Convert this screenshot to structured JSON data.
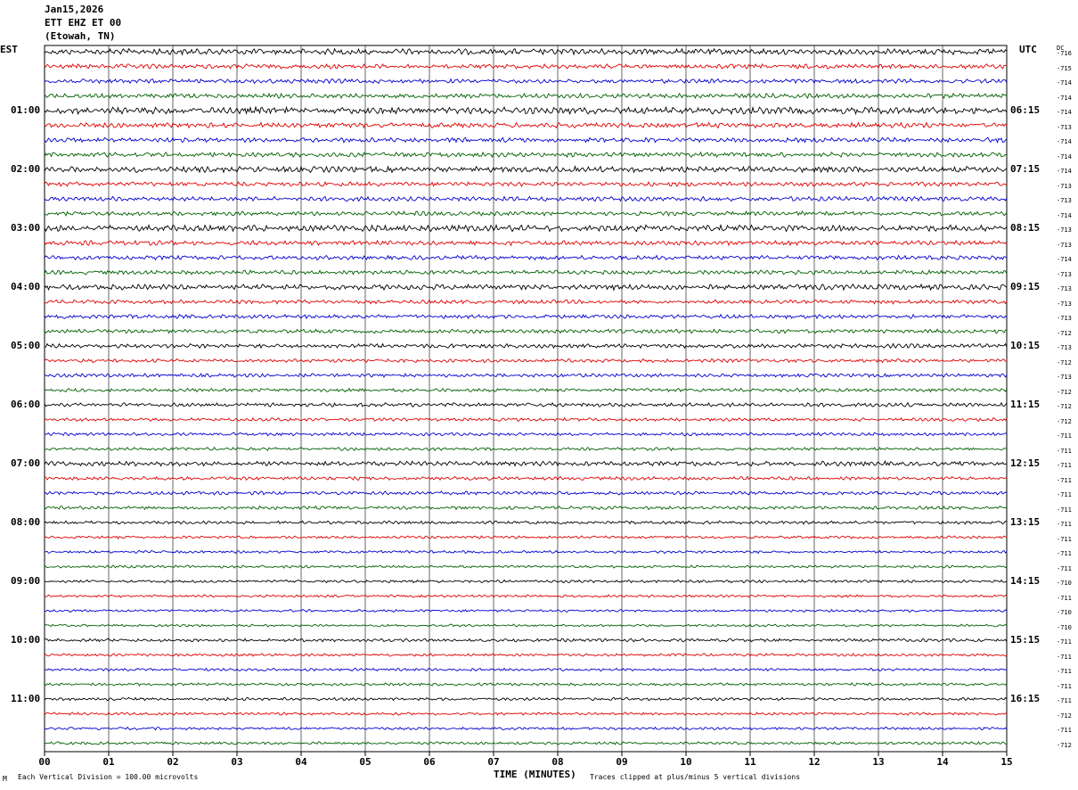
{
  "header": {
    "date": "Jan15,2026",
    "station": "ETT EHZ ET 00",
    "location": "(Etowah, TN)"
  },
  "axis": {
    "left_tz": "EST",
    "right_tz": "UTC",
    "dc_label": "DC",
    "xlabel": "TIME (MINUTES)"
  },
  "footer": {
    "scale_note": "Each Vertical Division =  100.00 microvolts",
    "clip_note": "Traces clipped at plus/minus 5 vertical divisions",
    "corner_mark": "M"
  },
  "colors": {
    "trace_cycle": [
      "#000000",
      "#e00000",
      "#0000d0",
      "#006000"
    ],
    "grid": "#000000",
    "background": "#ffffff"
  },
  "chart_data": {
    "type": "line",
    "title": "Jan15,2026 ETT EHZ ET 00 (Etowah, TN)",
    "xlabel": "TIME (MINUTES)",
    "xlim": [
      0,
      15
    ],
    "x_ticks": [
      "00",
      "01",
      "02",
      "03",
      "04",
      "05",
      "06",
      "07",
      "08",
      "09",
      "10",
      "11",
      "12",
      "13",
      "14",
      "15"
    ],
    "rows_per_hour": 4,
    "minutes_per_row": 15,
    "left_time_labels": [
      "01:00",
      "02:00",
      "03:00",
      "04:00",
      "05:00",
      "06:00",
      "07:00",
      "08:00",
      "09:00",
      "10:00",
      "11:00"
    ],
    "right_time_labels": [
      "06:15",
      "07:15",
      "08:15",
      "09:15",
      "10:15",
      "11:15",
      "12:15",
      "13:15",
      "14:15",
      "15:15",
      "16:15"
    ],
    "dc_offsets": [
      "-716",
      "-715",
      "-714",
      "-714",
      "-714",
      "-713",
      "-714",
      "-714",
      "-714",
      "-713",
      "-713",
      "-714",
      "-713",
      "-713",
      "-714",
      "-713",
      "-713",
      "-713",
      "-713",
      "-712",
      "-713",
      "-712",
      "-713",
      "-712",
      "-712",
      "-712",
      "-711",
      "-711",
      "-711",
      "-711",
      "-711",
      "-711",
      "-711",
      "-711",
      "-711",
      "-711",
      "-710",
      "-711",
      "-710",
      "-710",
      "-711",
      "-711",
      "-711",
      "-711",
      "-711",
      "-712",
      "-711",
      "-712"
    ],
    "series": [
      {
        "values": [
          0.3,
          0.35,
          0.3,
          0.32,
          0.28,
          0.22,
          0.2,
          0.24,
          0.16,
          0.14,
          0.16,
          0.15,
          0.15,
          0.14,
          0.12,
          0.16
        ]
      },
      {
        "values": [
          0.24,
          0.26,
          0.22,
          0.24,
          0.2,
          0.18,
          0.17,
          0.18,
          0.14,
          0.13,
          0.14,
          0.14,
          0.14,
          0.13,
          0.13,
          0.14
        ]
      },
      {
        "values": [
          0.22,
          0.24,
          0.23,
          0.22,
          0.2,
          0.18,
          0.16,
          0.18,
          0.14,
          0.13,
          0.14,
          0.14,
          0.14,
          0.14,
          0.13,
          0.14
        ]
      },
      {
        "values": [
          0.23,
          0.24,
          0.22,
          0.22,
          0.2,
          0.18,
          0.16,
          0.17,
          0.14,
          0.13,
          0.14,
          0.14,
          0.13,
          0.13,
          0.13,
          0.13
        ]
      }
    ]
  }
}
